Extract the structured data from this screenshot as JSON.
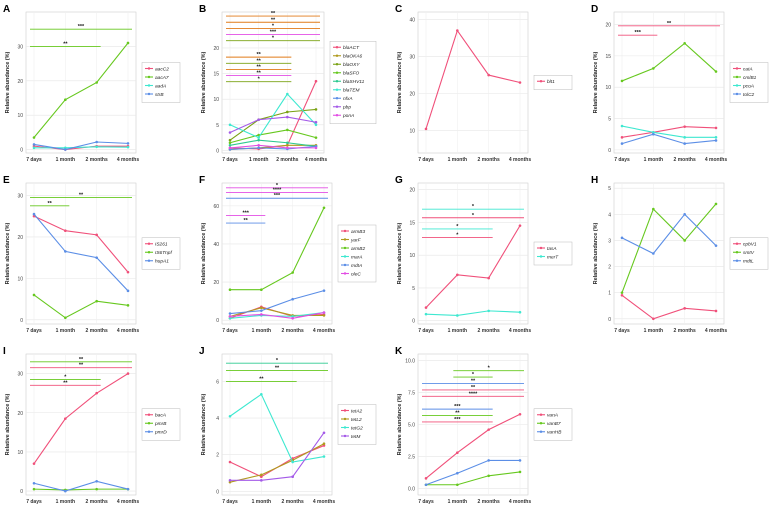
{
  "colors": {
    "red": "#f0507a",
    "olive": "#b09a1e",
    "green": "#66c81e",
    "teal": "#2ec990",
    "cyan": "#3ee8d0",
    "blue": "#5b8ee6",
    "purple": "#a45ae8",
    "magenta": "#e24ee4",
    "orange": "#e07a18",
    "darkgreen": "#7aa214"
  },
  "chart_data": [
    {
      "panel": "A",
      "type": "line",
      "x": [
        "7 days",
        "1 month",
        "2 months",
        "4 months"
      ],
      "ylabel": "Relative abundance (%)",
      "ylim": [
        -1,
        40
      ],
      "yticks": [
        0,
        10,
        20,
        30
      ],
      "series": [
        {
          "name": "aacC2",
          "color": "red",
          "values": [
            1.0,
            0.0,
            1.0,
            1.0
          ]
        },
        {
          "name": "aacA7",
          "color": "green",
          "values": [
            3.5,
            14.5,
            19.5,
            31.0
          ]
        },
        {
          "name": "aadA",
          "color": "cyan",
          "values": [
            0.5,
            0.5,
            0.8,
            0.7
          ]
        },
        {
          "name": "strB",
          "color": "blue",
          "values": [
            1.5,
            0.0,
            2.2,
            1.8
          ]
        }
      ],
      "sig": [
        {
          "label": "***",
          "from": 0,
          "to": 3,
          "y": 35,
          "color": "green"
        },
        {
          "label": "**",
          "from": 0,
          "to": 2,
          "y": 30,
          "color": "green"
        }
      ]
    },
    {
      "panel": "B",
      "type": "line",
      "x": [
        "7 days",
        "1 month",
        "2 months",
        "4 months"
      ],
      "ylabel": "Relative abundance (%)",
      "ylim": [
        -0.5,
        27
      ],
      "yticks": [
        0,
        5,
        10,
        15,
        20
      ],
      "series": [
        {
          "name": "blaACT",
          "color": "red",
          "values": [
            0.5,
            0.3,
            1.0,
            13.5
          ]
        },
        {
          "name": "blaOKA6",
          "color": "olive",
          "values": [
            0.2,
            0.5,
            1.0,
            1.0
          ]
        },
        {
          "name": "blaOXY",
          "color": "darkgreen",
          "values": [
            2.0,
            6.0,
            7.5,
            8.0
          ]
        },
        {
          "name": "blaSFO",
          "color": "green",
          "values": [
            1.5,
            3.0,
            4.0,
            2.5
          ]
        },
        {
          "name": "blaSHV11",
          "color": "teal",
          "values": [
            1.0,
            2.0,
            1.5,
            0.8
          ]
        },
        {
          "name": "blaTEM",
          "color": "cyan",
          "values": [
            5.0,
            2.5,
            11.0,
            5.0
          ]
        },
        {
          "name": "nfxA",
          "color": "blue",
          "values": [
            0.2,
            0.5,
            0.3,
            0.8
          ]
        },
        {
          "name": "pbp",
          "color": "purple",
          "values": [
            3.5,
            6.0,
            6.5,
            5.5
          ]
        },
        {
          "name": "ponA",
          "color": "magenta",
          "values": [
            0.5,
            1.0,
            0.5,
            0.5
          ]
        }
      ],
      "sig": [
        {
          "label": "**",
          "from": 0,
          "to": 3,
          "y": 26.2,
          "color": "orange"
        },
        {
          "label": "**",
          "from": 0,
          "to": 3,
          "y": 25.0,
          "color": "orange"
        },
        {
          "label": "*",
          "from": 0,
          "to": 3,
          "y": 23.8,
          "color": "orange"
        },
        {
          "label": "***",
          "from": 0,
          "to": 3,
          "y": 22.6,
          "color": "magenta"
        },
        {
          "label": "*",
          "from": 0,
          "to": 3,
          "y": 21.4,
          "color": "darkgreen"
        },
        {
          "label": "**",
          "from": 0,
          "to": 2,
          "y": 18.2,
          "color": "orange"
        },
        {
          "label": "**",
          "from": 0,
          "to": 2,
          "y": 17.0,
          "color": "darkgreen"
        },
        {
          "label": "**",
          "from": 0,
          "to": 2,
          "y": 15.8,
          "color": "orange"
        },
        {
          "label": "**",
          "from": 0,
          "to": 2,
          "y": 14.6,
          "color": "magenta"
        },
        {
          "label": "*",
          "from": 0,
          "to": 2,
          "y": 13.4,
          "color": "darkgreen"
        }
      ]
    },
    {
      "panel": "C",
      "type": "line",
      "x": [
        "7 days",
        "1 month",
        "2 months",
        "4 months"
      ],
      "ylabel": "Relative abundance (%)",
      "ylim": [
        4,
        42
      ],
      "yticks": [
        10,
        20,
        30,
        40
      ],
      "series": [
        {
          "name": "blt1",
          "color": "red",
          "values": [
            10.5,
            37.0,
            25.0,
            23.0
          ]
        }
      ],
      "sig": []
    },
    {
      "panel": "D",
      "type": "line",
      "x": [
        "7 days",
        "1 month",
        "2 months",
        "4 months"
      ],
      "ylabel": "Relative abundance (%)",
      "ylim": [
        -0.5,
        22
      ],
      "yticks": [
        0,
        5,
        10,
        15,
        20
      ],
      "series": [
        {
          "name": "catA",
          "color": "red",
          "values": [
            2.0,
            2.8,
            3.7,
            3.5
          ]
        },
        {
          "name": "cmlB1",
          "color": "green",
          "values": [
            11.0,
            13.0,
            17.0,
            12.5
          ]
        },
        {
          "name": "pcoA",
          "color": "cyan",
          "values": [
            3.8,
            2.8,
            2.0,
            2.0
          ]
        },
        {
          "name": "tolC2",
          "color": "blue",
          "values": [
            1.0,
            2.5,
            1.0,
            1.5
          ]
        }
      ],
      "sig": [
        {
          "label": "**",
          "from": 0,
          "to": 3,
          "y": 19.8,
          "color": "red"
        },
        {
          "label": "***",
          "from": 0,
          "to": 1,
          "y": 18.3,
          "color": "red"
        }
      ]
    },
    {
      "panel": "E",
      "type": "line",
      "x": [
        "7 days",
        "1 month",
        "2 months",
        "4 months"
      ],
      "ylabel": "Relative abundance (%)",
      "ylim": [
        -1,
        33
      ],
      "yticks": [
        0,
        10,
        20,
        30
      ],
      "series": [
        {
          "name": "IS261",
          "color": "red",
          "values": [
            25.0,
            21.5,
            20.5,
            11.5
          ]
        },
        {
          "name": "IS6Tnpf",
          "color": "green",
          "values": [
            6.0,
            0.5,
            4.5,
            3.5
          ]
        },
        {
          "name": "hupA1",
          "color": "blue",
          "values": [
            25.5,
            16.5,
            15.0,
            7.0
          ]
        }
      ],
      "sig": [
        {
          "label": "**",
          "from": 0,
          "to": 3,
          "y": 29.5,
          "color": "green"
        },
        {
          "label": "**",
          "from": 0,
          "to": 1,
          "y": 27.5,
          "color": "green"
        }
      ]
    },
    {
      "panel": "F",
      "type": "line",
      "x": [
        "7 days",
        "1 month",
        "2 months",
        "4 months"
      ],
      "ylabel": "Relative abundance (%)",
      "ylim": [
        -2,
        72
      ],
      "yticks": [
        0,
        20,
        40,
        60
      ],
      "series": [
        {
          "name": "armB3",
          "color": "red",
          "values": [
            1.0,
            7.0,
            2.0,
            3.0
          ]
        },
        {
          "name": "yarF",
          "color": "olive",
          "values": [
            2.0,
            6.5,
            2.5,
            2.5
          ]
        },
        {
          "name": "armB2",
          "color": "green",
          "values": [
            16.0,
            16.0,
            25.0,
            59.0
          ]
        },
        {
          "name": "marA",
          "color": "cyan",
          "values": [
            1.0,
            2.5,
            2.0,
            4.0
          ]
        },
        {
          "name": "mdtA",
          "color": "blue",
          "values": [
            3.5,
            5.0,
            11.0,
            15.5
          ]
        },
        {
          "name": "oleC",
          "color": "magenta",
          "values": [
            2.0,
            3.0,
            1.0,
            4.0
          ]
        }
      ],
      "sig": [
        {
          "label": "*",
          "from": 0,
          "to": 3,
          "y": 69.5,
          "color": "magenta"
        },
        {
          "label": "****",
          "from": 0,
          "to": 3,
          "y": 67.0,
          "color": "magenta"
        },
        {
          "label": "***",
          "from": 0,
          "to": 3,
          "y": 64.0,
          "color": "blue"
        },
        {
          "label": "***",
          "from": 0,
          "to": 1,
          "y": 55.0,
          "color": "magenta"
        },
        {
          "label": "**",
          "from": 0,
          "to": 1,
          "y": 51.0,
          "color": "blue"
        }
      ]
    },
    {
      "panel": "G",
      "type": "line",
      "x": [
        "7 days",
        "1 month",
        "2 months",
        "4 months"
      ],
      "ylabel": "Relative abundance (%)",
      "ylim": [
        -0.5,
        21
      ],
      "yticks": [
        0,
        5,
        10,
        15,
        20
      ],
      "series": [
        {
          "name": "tasA",
          "color": "red",
          "values": [
            2.0,
            7.0,
            6.5,
            14.5
          ]
        },
        {
          "name": "merT",
          "color": "cyan",
          "values": [
            1.0,
            0.8,
            1.5,
            1.3
          ]
        }
      ],
      "sig": [
        {
          "label": "*",
          "from": 0,
          "to": 3,
          "y": 17.0,
          "color": "cyan"
        },
        {
          "label": "*",
          "from": 0,
          "to": 3,
          "y": 15.7,
          "color": "red"
        },
        {
          "label": "*",
          "from": 0,
          "to": 2,
          "y": 14.0,
          "color": "cyan"
        },
        {
          "label": "*",
          "from": 0,
          "to": 2,
          "y": 12.7,
          "color": "red"
        }
      ]
    },
    {
      "panel": "H",
      "type": "line",
      "x": [
        "7 days",
        "1 month",
        "2 months",
        "4 months"
      ],
      "ylabel": "Relative abundance (%)",
      "ylim": [
        -0.2,
        5.2
      ],
      "yticks": [
        0,
        1,
        2,
        3,
        4,
        5
      ],
      "series": [
        {
          "name": "cpbV1",
          "color": "red",
          "values": [
            0.9,
            0.0,
            0.4,
            0.3
          ]
        },
        {
          "name": "smtV",
          "color": "green",
          "values": [
            1.0,
            4.2,
            3.0,
            4.4
          ]
        },
        {
          "name": "mdtL",
          "color": "blue",
          "values": [
            3.1,
            2.5,
            4.0,
            2.8
          ]
        }
      ],
      "sig": []
    },
    {
      "panel": "I",
      "type": "line",
      "x": [
        "7 days",
        "1 month",
        "2 months",
        "4 months"
      ],
      "ylabel": "Relative abundance (%)",
      "ylim": [
        -1,
        35
      ],
      "yticks": [
        0,
        10,
        20,
        30
      ],
      "series": [
        {
          "name": "bacA",
          "color": "red",
          "values": [
            7.0,
            18.5,
            25.0,
            30.0
          ]
        },
        {
          "name": "pmrB",
          "color": "green",
          "values": [
            0.5,
            0.3,
            0.5,
            0.5
          ]
        },
        {
          "name": "pmrD",
          "color": "blue",
          "values": [
            2.0,
            0.0,
            2.5,
            0.5
          ]
        }
      ],
      "sig": [
        {
          "label": "**",
          "from": 0,
          "to": 3,
          "y": 33.0,
          "color": "green"
        },
        {
          "label": "**",
          "from": 0,
          "to": 3,
          "y": 31.5,
          "color": "red"
        },
        {
          "label": "*",
          "from": 0,
          "to": 2,
          "y": 28.5,
          "color": "green"
        },
        {
          "label": "**",
          "from": 0,
          "to": 2,
          "y": 27.0,
          "color": "red"
        }
      ]
    },
    {
      "panel": "J",
      "type": "line",
      "x": [
        "7 days",
        "1 month",
        "2 months",
        "4 months"
      ],
      "ylabel": "Relative abundance (%)",
      "ylim": [
        -0.2,
        7.5
      ],
      "yticks": [
        0,
        2,
        4,
        6
      ],
      "series": [
        {
          "name": "tetA2",
          "color": "red",
          "values": [
            1.6,
            0.8,
            1.8,
            2.5
          ]
        },
        {
          "name": "tetL2",
          "color": "olive",
          "values": [
            0.5,
            0.9,
            1.7,
            2.6
          ]
        },
        {
          "name": "tetG2",
          "color": "cyan",
          "values": [
            4.1,
            5.3,
            1.6,
            1.9
          ]
        },
        {
          "name": "tetM",
          "color": "purple",
          "values": [
            0.6,
            0.6,
            0.8,
            3.2
          ]
        }
      ],
      "sig": [
        {
          "label": "*",
          "from": 0,
          "to": 3,
          "y": 7.0,
          "color": "teal"
        },
        {
          "label": "**",
          "from": 0,
          "to": 3,
          "y": 6.6,
          "color": "green"
        },
        {
          "label": "**",
          "from": 0,
          "to": 2,
          "y": 6.0,
          "color": "green"
        }
      ]
    },
    {
      "panel": "K",
      "type": "line",
      "x": [
        "7 days",
        "1 month",
        "2 months",
        "4 months"
      ],
      "ylabel": "Relative abundance (%)",
      "ylim": [
        -0.5,
        10.5
      ],
      "yticks": [
        "0.0",
        "2.5",
        "5.0",
        "7.5",
        "10.0"
      ],
      "series": [
        {
          "name": "vanA",
          "color": "red",
          "values": [
            0.8,
            2.8,
            4.6,
            5.8
          ]
        },
        {
          "name": "vanB7",
          "color": "green",
          "values": [
            0.3,
            0.3,
            1.0,
            1.3
          ]
        },
        {
          "name": "vanHB",
          "color": "blue",
          "values": [
            0.3,
            1.2,
            2.2,
            2.2
          ]
        }
      ],
      "sig": [
        {
          "label": "*",
          "from": 1,
          "to": 3,
          "y": 9.2,
          "color": "green"
        },
        {
          "label": "*",
          "from": 1,
          "to": 2,
          "y": 8.7,
          "color": "green"
        },
        {
          "label": "**",
          "from": 0,
          "to": 3,
          "y": 8.2,
          "color": "blue"
        },
        {
          "label": "**",
          "from": 0,
          "to": 3,
          "y": 7.7,
          "color": "red"
        },
        {
          "label": "****",
          "from": 0,
          "to": 3,
          "y": 7.2,
          "color": "red"
        },
        {
          "label": "***",
          "from": 0,
          "to": 2,
          "y": 6.2,
          "color": "blue"
        },
        {
          "label": "**",
          "from": 0,
          "to": 2,
          "y": 5.7,
          "color": "green"
        },
        {
          "label": "***",
          "from": 0,
          "to": 2,
          "y": 5.2,
          "color": "red"
        }
      ]
    }
  ]
}
